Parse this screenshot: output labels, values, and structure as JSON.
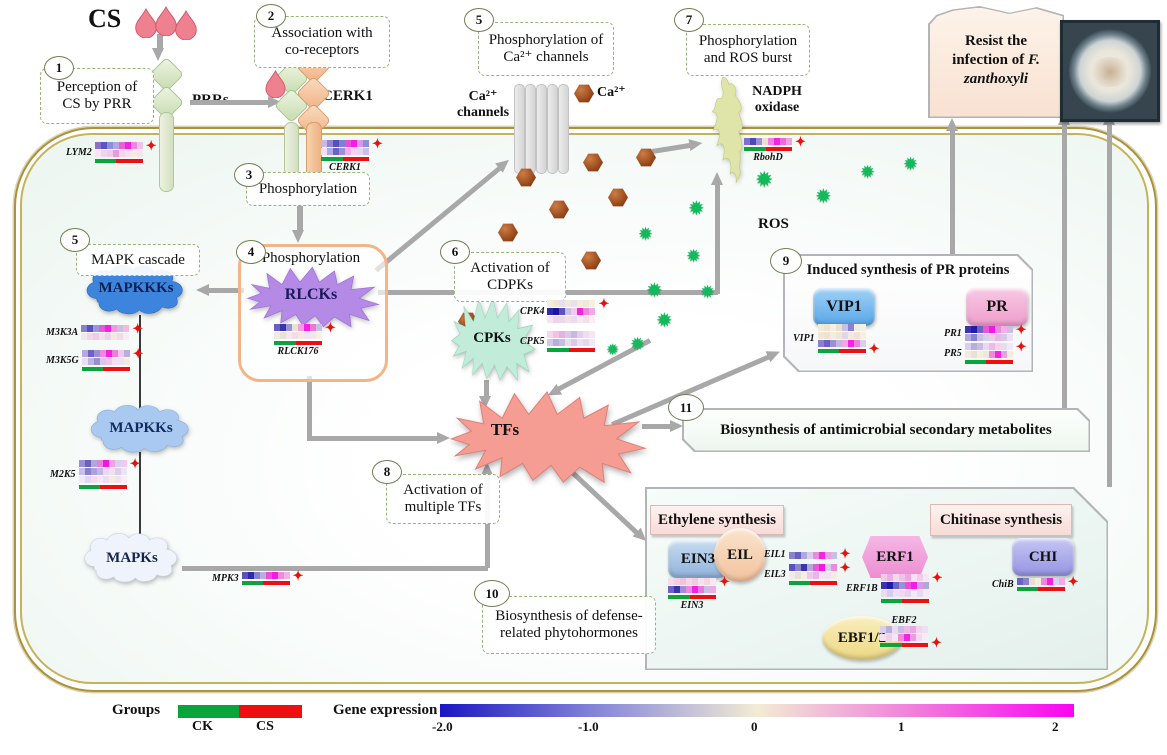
{
  "figure": {
    "cs_label": "CS",
    "prrs_label": "PRRs",
    "cerk1_label": "CERK1",
    "ca_channels_line1": "Ca²⁺",
    "ca_channels_line2": "channels",
    "ca_ion_label": "Ca²⁺",
    "nadph_line1": "NADPH",
    "nadph_line2": "oxidase",
    "ros_label": "ROS",
    "mapkkks_label": "MAPKKKs",
    "mapkks_label": "MAPKKs",
    "mapks_label": "MAPKs",
    "rlcks_label": "RLCKs",
    "cpks_label": "CPKs",
    "tfs_label": "TFs"
  },
  "steps": {
    "s1": {
      "num": "1",
      "text": "Perception of CS by PRR"
    },
    "s2": {
      "num": "2",
      "text": "Association with co-receptors"
    },
    "s3": {
      "num": "3",
      "text": "Phosphorylation"
    },
    "s4": {
      "num": "4",
      "text": "Phosphorylation"
    },
    "s5_mapk": {
      "num": "5",
      "text": "MAPK cascade"
    },
    "s5_ca": {
      "num": "5",
      "text": "Phosphorylation of Ca²⁺ channels"
    },
    "s6": {
      "num": "6",
      "text": "Activation of CDPKs"
    },
    "s7": {
      "num": "7",
      "text": "Phosphorylation and ROS burst"
    },
    "s8": {
      "num": "8",
      "text": "Activation of multiple TFs"
    },
    "s9": {
      "num": "9",
      "title": "Induced synthesis of PR proteins"
    },
    "s10": {
      "num": "10",
      "text": "Biosynthesis of defense-related phytohormones"
    },
    "s11": {
      "num": "11",
      "text": "Biosynthesis of antimicrobial secondary metabolites"
    }
  },
  "pr_module": {
    "vip1": "VIP1",
    "pr": "PR"
  },
  "ethylene_module": {
    "ethylene": "Ethylene synthesis",
    "chitinase": "Chitinase synthesis",
    "ein3": "EIN3",
    "eil": "EIL",
    "erf1": "ERF1",
    "chi": "CHI",
    "ebf": "EBF1/2"
  },
  "outcome": {
    "pre": "Resist the infection of ",
    "species": "F. zanthoxyli"
  },
  "legend": {
    "groups_label": "Groups",
    "ck": "CK",
    "cs": "CS",
    "gene_expression_label": "Gene expression",
    "ticks": [
      "-2.0",
      "-1.0",
      "0",
      "1",
      "2"
    ],
    "gradient": [
      "#1a17c2 0%",
      "#8b8bd8 26%",
      "#f2ecd4 50%",
      "#ef7edb 75%",
      "#fb04f1 100%"
    ],
    "group_colors": {
      "ck": "#0aa43c",
      "cs": "#ee1010"
    }
  },
  "palette": {
    "arrow": "#a8a8a8",
    "ros_green": "#11bb5c",
    "ca_brown": "#96451a",
    "marker_plus": "#e8100c"
  },
  "heatmaps": [
    {
      "id": "lym2",
      "label": "LYM2",
      "label_pos": "left",
      "plus": true,
      "bar": true,
      "rows": [
        [
          "#8d6fc4",
          "#5a55c4",
          "#8f8fd8",
          "#b0a8e0",
          "#ec5fd8",
          "#f322e0",
          "#ee8ade",
          "#f0c2ea"
        ],
        [
          "#f6e6f0",
          "#f0d5ea",
          "#eccce6",
          "#ea9ad8",
          "#f2d8ea",
          "#f0e2f2",
          "#f6eadf",
          "#f4e4ee"
        ]
      ]
    },
    {
      "id": "cerk1",
      "label": "CERK1",
      "label_pos": "below",
      "plus": true,
      "bar": true,
      "rows": [
        [
          "#c8b8e8",
          "#8f85d8",
          "#5550bc",
          "#7f7fd0",
          "#ee49d8",
          "#f41ce2",
          "#d898e8",
          "#8f8fd8"
        ],
        [
          "#e8e2f4",
          "#b0aade",
          "#6a62c4",
          "#9a90d8",
          "#f0b0e6",
          "#f6d0ee",
          "#e0d8f0",
          "#c8c0e8"
        ]
      ]
    },
    {
      "id": "rbohd",
      "label": "RbohD",
      "label_pos": "below",
      "plus": true,
      "bar": true,
      "rows": [
        [
          "#7a72cc",
          "#5048b8",
          "#9890d8",
          "#e8e0d0",
          "#f080e0",
          "#f325e4",
          "#ee6ad8",
          "#f2a0e6"
        ]
      ]
    },
    {
      "id": "m3k3a",
      "label": "M3K3A",
      "label_pos": "left",
      "plus": true,
      "bar": false,
      "rows": [
        [
          "#8880cc",
          "#5a50c0",
          "#9898d8",
          "#e858d4",
          "#f320e2",
          "#f09add",
          "#c8c0e0",
          "#f2b8e8"
        ],
        [
          "#f4e6f0",
          "#f0d8ea",
          "#eecce4",
          "#f4dfee",
          "#e8d4ec",
          "#f6e8dc",
          "#f0dce8",
          "#f6ecf2"
        ]
      ]
    },
    {
      "id": "m3k5g",
      "label": "M3K5G",
      "label_pos": "left",
      "plus": true,
      "bar": true,
      "rows": [
        [
          "#b8a8dc",
          "#6f62c8",
          "#9a8fd4",
          "#f088e0",
          "#f322e0",
          "#e87fd8",
          "#f4c8ec",
          "#b8b0dc"
        ],
        [
          "#e8def0",
          "#c0b4e0",
          "#9a90cc",
          "#d8c8e8",
          "#f0c4e8",
          "#f6dff0",
          "#ece4f4",
          "#f4eadf"
        ]
      ]
    },
    {
      "id": "m2k5",
      "label": "M2K5",
      "label_pos": "left",
      "plus": true,
      "bar": true,
      "rows": [
        [
          "#9890d4",
          "#6a60c4",
          "#b0a8dc",
          "#e87fd8",
          "#f318e0",
          "#f2a2e4",
          "#d8d0ec",
          "#f4c8ec"
        ],
        [
          "#c8c0e4",
          "#8a80cc",
          "#aaa2d8",
          "#c0b8e0",
          "#e8d8f0",
          "#f0e0f0",
          "#d8d0ec",
          "#ece4f4"
        ],
        [
          "#f0e8f4",
          "#e0d8ee",
          "#f2dcec",
          "#f6e8f0",
          "#e8e0f2",
          "#f4ecdc",
          "#f0e2ee",
          "#f6eef4"
        ]
      ]
    },
    {
      "id": "mpk3",
      "label": "MPK3",
      "label_pos": "left",
      "plus": true,
      "bar": true,
      "rows": [
        [
          "#5a52c0",
          "#2e2aac",
          "#8a82d0",
          "#b8b0dc",
          "#ee4ed6",
          "#f31ae2",
          "#f08ade",
          "#f2b2e8"
        ]
      ]
    },
    {
      "id": "rlck176",
      "label": "RLCK176",
      "label_pos": "below",
      "plus": true,
      "bar": true,
      "rows": [
        [
          "#6a60c4",
          "#3a34b0",
          "#9a92d4",
          "#e8e2d4",
          "#f0a0e2",
          "#f322e0",
          "#ee78da",
          "#c8c0e4"
        ],
        [
          "#f2ece0",
          "#e8e2d2",
          "#f4e8ec",
          "#f0dcea",
          "#f6eadf",
          "#ece6f2",
          "#f2e6ee",
          "#f6f0e4"
        ]
      ]
    },
    {
      "id": "cpk4",
      "label": "CPK4",
      "label_pos": "left",
      "plus": true,
      "bar": false,
      "rows": [
        [
          "#f4eedd",
          "#eee6d6",
          "#e6dff0",
          "#f0e8dc",
          "#e8e0ea",
          "#f4ecd8",
          "#efe8da",
          "#f6f0e2"
        ],
        [
          "#2e2aac",
          "#1a16a0",
          "#5a52c0",
          "#c8c0e4",
          "#f6c8ee",
          "#f322e0",
          "#ee86dc",
          "#f2aae6"
        ],
        [
          "#f6e4f0",
          "#f0d4ea",
          "#ead8ee",
          "#f4e0ee",
          "#eedcec",
          "#f6eaf2",
          "#f0e0ee",
          "#f8eef4"
        ]
      ]
    },
    {
      "id": "cpk5",
      "label": "CPK5",
      "label_pos": "left",
      "plus": false,
      "bar": true,
      "rows": [
        [
          "#f6d8ee",
          "#f0c0e8",
          "#e8b0e0",
          "#d8c8ec",
          "#c8b8e4",
          "#e0d0ee",
          "#f0dcf0",
          "#f6e6f2"
        ],
        [
          "#d0c8e8",
          "#b8acdc",
          "#c8bce4",
          "#e8dcf0",
          "#d8cce8",
          "#ece0f4",
          "#e4d8ee",
          "#f2e8f6"
        ]
      ]
    },
    {
      "id": "vip1",
      "label": "VIP1",
      "label_pos": "left",
      "plus": true,
      "plus_pos": "bottom",
      "bar": true,
      "rows": [
        [
          "#f4ead8",
          "#efe4d2",
          "#f6eede",
          "#e8e0d0",
          "#c8c0e0",
          "#8a82cc",
          "#f2ecdc",
          "#f6f0e2"
        ],
        [
          "#f2e8d6",
          "#eee2d0",
          "#f4ecdc",
          "#f0e6d4",
          "#e0d8e8",
          "#f4eadb",
          "#ece4d8",
          "#f6efe0"
        ],
        [
          "#8a80cc",
          "#6a60c4",
          "#9a90d4",
          "#c0b8e0",
          "#f0a8e4",
          "#f325e2",
          "#ee80dc",
          "#d8d0ec"
        ]
      ]
    },
    {
      "id": "pr1",
      "label": "PR1",
      "label_pos": "left",
      "plus": true,
      "bar": false,
      "rows": [
        [
          "#3a34b0",
          "#201ca6",
          "#6a62c4",
          "#e858d4",
          "#f318e2",
          "#ee8ade",
          "#f2b0e8",
          "#c8c0e4"
        ],
        [
          "#b0a8d8",
          "#8a82cc",
          "#c8c0e4",
          "#d8d0ea",
          "#f0c8ea",
          "#e8b8e4",
          "#d8c8e8",
          "#ece0f2"
        ]
      ]
    },
    {
      "id": "pr5",
      "label": "PR5",
      "label_pos": "left",
      "plus": true,
      "bar": true,
      "rows": [
        [
          "#d8d0ea",
          "#b8aede",
          "#c8bce4",
          "#e8d8f0",
          "#f0b8e8",
          "#f6d2ef",
          "#e8dcf2",
          "#f2e8f6"
        ],
        [
          "#f2ece0",
          "#e8e2d4",
          "#f4eede",
          "#f0e8d8",
          "#f088e0",
          "#f325e2",
          "#e8a0e0",
          "#f4ecdf"
        ]
      ]
    },
    {
      "id": "ein3",
      "label": "EIN3",
      "label_pos": "below",
      "plus": true,
      "bar": true,
      "rows": [
        [
          "#f6dce8",
          "#f2d0e2",
          "#eec4dc",
          "#f4d8e6",
          "#f0ccdf",
          "#f6e2ec",
          "#f2d6e4",
          "#f6e8ee"
        ],
        [
          "#6a62c4",
          "#3a34b0",
          "#9a92d4",
          "#f088e0",
          "#f322e0",
          "#ee78da",
          "#c8c0e4",
          "#f2aae6"
        ]
      ]
    },
    {
      "id": "eil1",
      "label": "EIL1",
      "label_pos": "left",
      "plus": true,
      "bar": false,
      "rows": [
        [
          "#8a82cc",
          "#6a60c4",
          "#b0a8d8",
          "#d8d0ea",
          "#f088e0",
          "#f325e2",
          "#e8a0e0",
          "#c8c0e4"
        ]
      ]
    },
    {
      "id": "eil3",
      "label": "EIL3",
      "label_pos": "left",
      "plus": true,
      "bar": true,
      "rows": [
        [
          "#5a52c0",
          "#8a82cc",
          "#3a34b0",
          "#b0a8d8",
          "#e858d4",
          "#f318e2",
          "#d8d0ea",
          "#ee8ade"
        ],
        [
          "#f2ece0",
          "#e8e2d4",
          "#f4eede",
          "#f0c8ea",
          "#e8b8e4",
          "#f6e2f0",
          "#ece4f4",
          "#f4ecdf"
        ]
      ]
    },
    {
      "id": "erf1b",
      "label": "ERF1B",
      "label_pos": "left",
      "plus": true,
      "bar": true,
      "rows": [
        [
          "#f0c8ea",
          "#e8b0e2",
          "#f6d8f0",
          "#f2c0e8",
          "#eea8e0",
          "#f6e0f2",
          "#f0cce8",
          "#f6e6f4"
        ],
        [
          "#3a34b0",
          "#201ca6",
          "#6a62c4",
          "#9a92d4",
          "#ee49d8",
          "#f41ce2",
          "#d898e8",
          "#b0a8d8"
        ],
        [
          "#e8def2",
          "#d8cce8",
          "#ece0f4",
          "#f0d8ee",
          "#e0d4ec",
          "#f4e6f4",
          "#e8d8f0",
          "#f2e8f6"
        ]
      ]
    },
    {
      "id": "ebf2",
      "label": "EBF2",
      "label_pos": "above",
      "plus": true,
      "plus_pos": "bottom",
      "bar": true,
      "rows": [
        [
          "#d8d0ea",
          "#b8aede",
          "#e8dcf2",
          "#c8bce4",
          "#f0b8e8",
          "#e8a8e2",
          "#f6d2ef",
          "#ece0f4"
        ],
        [
          "#f2e0ee",
          "#eed0e8",
          "#f6e8f2",
          "#f088e0",
          "#f325e2",
          "#ee9ae0",
          "#f4d8ef",
          "#f6ecf4"
        ]
      ]
    },
    {
      "id": "chib",
      "label": "ChiB",
      "label_pos": "left",
      "plus": true,
      "bar": true,
      "rows": [
        [
          "#6a62c4",
          "#8a82cc",
          "#e8e0d4",
          "#f4eede",
          "#ee86dc",
          "#f322e0",
          "#d8d0ec",
          "#f2aae6"
        ]
      ]
    }
  ]
}
